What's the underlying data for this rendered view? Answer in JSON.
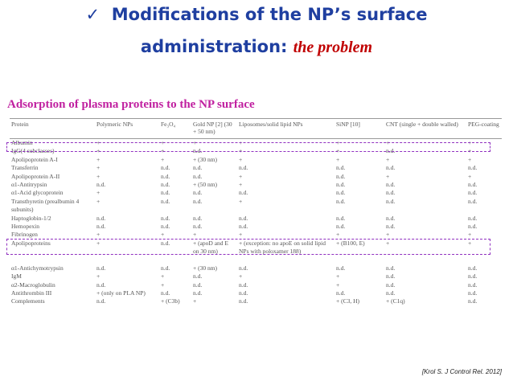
{
  "header": {
    "check": "✓",
    "title_line1": "Modifications of the NP’s surface",
    "title_line2": "administration:",
    "title_tail": "the problem"
  },
  "subtitle": "Adsorption of plasma proteins to the NP surface",
  "table": {
    "columns": [
      "Protein",
      "Polymeric NPs",
      "Fe₃O₄",
      "Gold NP [2] (30 + 50 nm)",
      "Liposomes/solid lipid NPs",
      "SiNP [10]",
      "CNT (single + double walled)",
      "PEG-coating"
    ],
    "rows": [
      [
        "Albumin",
        "+",
        "+",
        "+",
        "+",
        "+",
        "+",
        "+"
      ],
      [
        "IgG(4 subclasses)",
        "+",
        "+",
        "n.d.",
        "+",
        "+",
        "n.d.",
        "+"
      ],
      [
        "Apolipoprotein A-I",
        "+",
        "+",
        "+ (30 nm)",
        "+",
        "+",
        "+",
        "+"
      ],
      [
        "Transferrin",
        "+",
        "n.d.",
        "n.d.",
        "n.d.",
        "n.d.",
        "n.d.",
        "n.d."
      ],
      [
        "Apolipoprotein A-II",
        "+",
        "n.d.",
        "n.d.",
        "+",
        "n.d.",
        "+",
        "+"
      ],
      [
        "α1-Antitrypsin",
        "n.d.",
        "n.d.",
        "+ (50 nm)",
        "+",
        "n.d.",
        "n.d.",
        "n.d."
      ],
      [
        "α1-Acid glycoprotein",
        "+",
        "n.d.",
        "n.d.",
        "n.d.",
        "n.d.",
        "n.d.",
        "n.d."
      ],
      [
        "Transthyretin (prealbumin 4 subunits)",
        "+",
        "n.d.",
        "n.d.",
        "+",
        "n.d.",
        "n.d.",
        "n.d."
      ],
      [
        "Haptoglobin-1/2",
        "n.d.",
        "n.d.",
        "n.d.",
        "n.d.",
        "n.d.",
        "n.d.",
        "n.d."
      ],
      [
        "Hemopexin",
        "n.d.",
        "n.d.",
        "n.d.",
        "n.d.",
        "n.d.",
        "n.d.",
        "n.d."
      ],
      [
        "Fibrinogen",
        "+",
        "+",
        "+",
        "+",
        "+",
        "+",
        "+"
      ],
      [
        "Apolipoproteins",
        "+",
        "n.d.",
        "+ (apoD and E on 30 nm)",
        "+ (exception: no apoE on solid lipid NPs with poloxamer 188)",
        "+ (B100, E)",
        "+",
        "+"
      ],
      [
        "α1-Antichymotrypsin",
        "n.d.",
        "n.d.",
        "+ (30 nm)",
        "n.d.",
        "n.d.",
        "n.d.",
        "n.d."
      ],
      [
        "IgM",
        "+",
        "+",
        "n.d.",
        "+",
        "+",
        "n.d.",
        "n.d."
      ],
      [
        "α2-Macroglobulin",
        "n.d.",
        "+",
        "n.d.",
        "n.d.",
        "+",
        "n.d.",
        "n.d."
      ],
      [
        "Antithrombin III",
        "+ (only on PLA NP)",
        "n.d.",
        "n.d.",
        "n.d.",
        "n.d.",
        "n.d.",
        "n.d."
      ],
      [
        "Complements",
        "n.d.",
        "+ (C3b)",
        "+",
        "n.d.",
        "+ (C3, H)",
        "+ (C1q)",
        "n.d."
      ]
    ]
  },
  "citation": "[Krol S. J Control Rel. 2012]"
}
